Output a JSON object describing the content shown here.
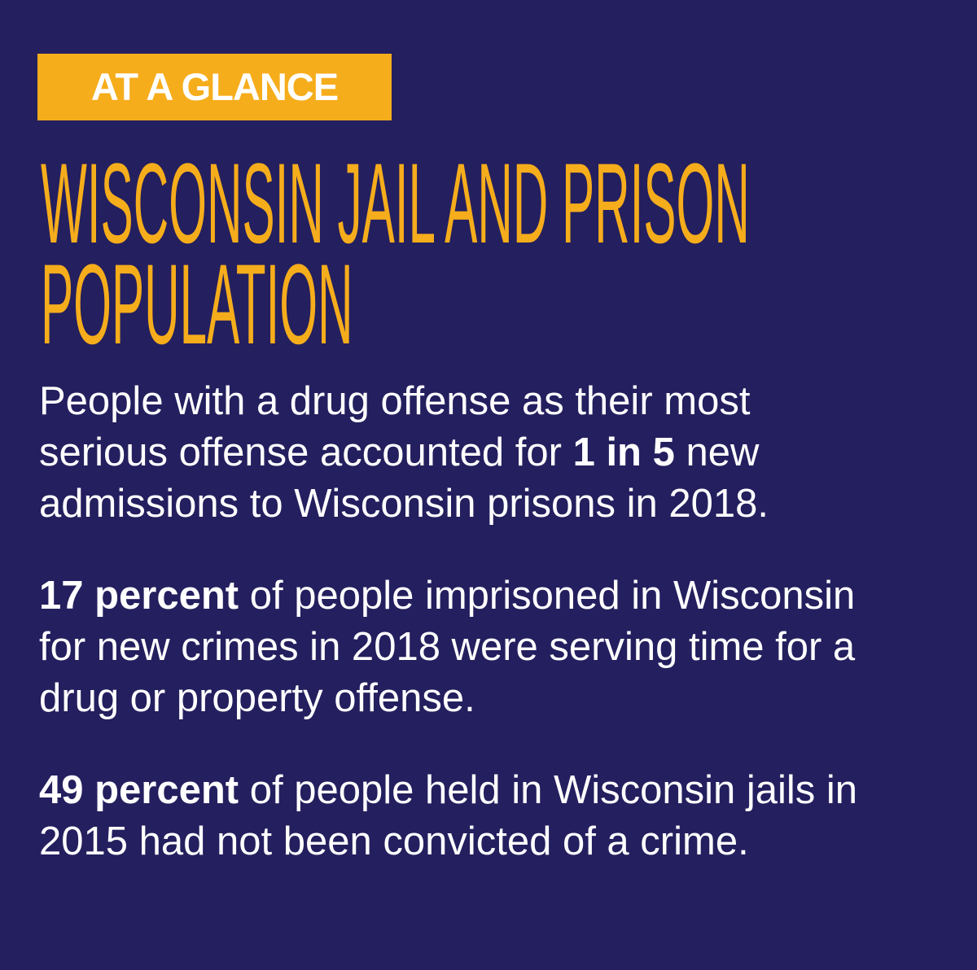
{
  "badge": "AT A GLANCE",
  "title_lines": [
    "WISCONSIN JAIL AND PRISON",
    "POPULATION"
  ],
  "facts": [
    {
      "parts": [
        {
          "text": "People with a drug offense as their most serious offense accounted for ",
          "bold": false
        },
        {
          "text": "1 in 5",
          "bold": true
        },
        {
          "text": " new admissions to Wisconsin prisons in 2018.",
          "bold": false
        }
      ]
    },
    {
      "parts": [
        {
          "text": "17 percent",
          "bold": true
        },
        {
          "text": " of people imprisoned in Wisconsin for new crimes in 2018 were serving time for a drug or property offense.",
          "bold": false
        }
      ]
    },
    {
      "parts": [
        {
          "text": "49 percent",
          "bold": true
        },
        {
          "text": " of people held in Wisconsin jails in 2015 had not been convicted of a crime.",
          "bold": false
        }
      ]
    }
  ]
}
